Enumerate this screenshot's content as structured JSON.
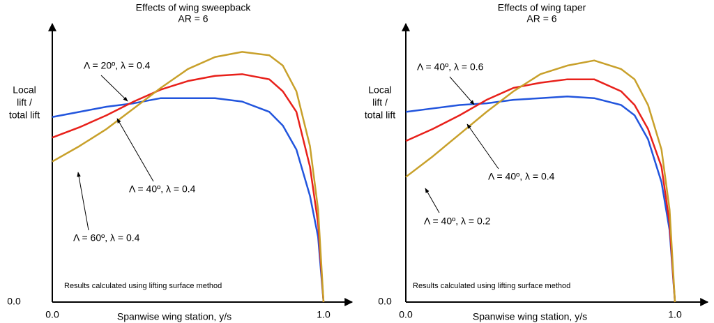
{
  "chart_data": [
    {
      "type": "line",
      "title": "Effects of wing sweepback",
      "subtitle": "AR = 6",
      "y_label": [
        "Local",
        "lift /",
        "total lift"
      ],
      "x_label": "Spanwise wing station, y/s",
      "note": "Results calculated using lifting surface method",
      "x": [
        0,
        0.1,
        0.2,
        0.3,
        0.4,
        0.5,
        0.6,
        0.7,
        0.8,
        0.85,
        0.9,
        0.95,
        0.98,
        1.0
      ],
      "xlim": [
        0,
        1
      ],
      "xticks": [
        {
          "value": 0,
          "label": "0.0"
        },
        {
          "value": 1,
          "label": "1.0"
        }
      ],
      "ylim": [
        0,
        1.6
      ],
      "yticks": [
        {
          "value": 0,
          "label": "0.0"
        }
      ],
      "series": [
        {
          "name": "Λ = 20º, λ = 0.4",
          "color": "#2255dd",
          "values": [
            1.08,
            1.11,
            1.14,
            1.16,
            1.19,
            1.19,
            1.19,
            1.17,
            1.11,
            1.03,
            0.89,
            0.62,
            0.38,
            0
          ]
        },
        {
          "name": "Λ = 40º, λ = 0.4",
          "color": "#e8201a",
          "values": [
            0.96,
            1.02,
            1.09,
            1.17,
            1.24,
            1.29,
            1.32,
            1.33,
            1.3,
            1.23,
            1.11,
            0.79,
            0.46,
            0
          ]
        },
        {
          "name": "Λ = 60º, λ = 0.4",
          "color": "#c8a02a",
          "values": [
            0.82,
            0.91,
            1.01,
            1.13,
            1.25,
            1.36,
            1.43,
            1.46,
            1.44,
            1.38,
            1.23,
            0.91,
            0.54,
            0
          ]
        }
      ]
    },
    {
      "type": "line",
      "title": "Effects of wing taper",
      "subtitle": "AR = 6",
      "y_label": [
        "Local",
        "lift /",
        "total lift"
      ],
      "x_label": "Spanwise wing station, y/s",
      "note": "Results calculated using lifting surface method",
      "x": [
        0,
        0.1,
        0.2,
        0.3,
        0.4,
        0.5,
        0.6,
        0.7,
        0.8,
        0.85,
        0.9,
        0.95,
        0.98,
        1.0
      ],
      "xlim": [
        0,
        1
      ],
      "xticks": [
        {
          "value": 0,
          "label": "0.0"
        },
        {
          "value": 1,
          "label": "1.0"
        }
      ],
      "ylim": [
        0,
        1.6
      ],
      "yticks": [
        {
          "value": 0,
          "label": "0.0"
        }
      ],
      "series": [
        {
          "name": "Λ = 40º, λ = 0.6",
          "color": "#2255dd",
          "values": [
            1.11,
            1.13,
            1.15,
            1.16,
            1.18,
            1.19,
            1.2,
            1.19,
            1.15,
            1.09,
            0.95,
            0.7,
            0.42,
            0
          ]
        },
        {
          "name": "Λ = 40º, λ = 0.4",
          "color": "#e8201a",
          "values": [
            0.94,
            1.01,
            1.09,
            1.18,
            1.25,
            1.28,
            1.3,
            1.3,
            1.23,
            1.15,
            1.01,
            0.79,
            0.46,
            0
          ]
        },
        {
          "name": "Λ = 40º, λ = 0.2",
          "color": "#c8a02a",
          "values": [
            0.73,
            0.85,
            0.98,
            1.11,
            1.23,
            1.33,
            1.38,
            1.41,
            1.36,
            1.3,
            1.15,
            0.89,
            0.54,
            0
          ]
        }
      ]
    }
  ]
}
